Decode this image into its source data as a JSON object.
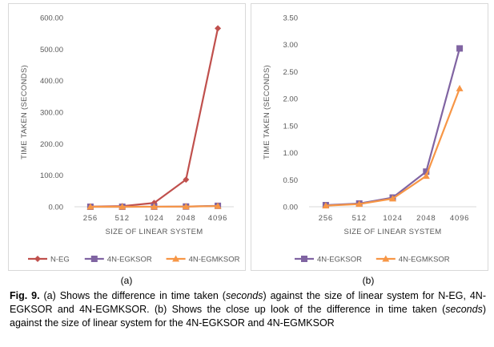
{
  "caption": {
    "fig_label": "Fig. 9.",
    "part1": " (a) Shows the difference in time taken (",
    "em1": "seconds",
    "part2": ") against the size of linear system for N-EG, 4N-EGKSOR and 4N-EGMKSOR. (b) Shows the close up look of the difference in time taken (",
    "em2": "seconds",
    "part3": ") against the size of linear system for the 4N-EGKSOR and 4N-EGMKSOR"
  },
  "sub_labels": {
    "a": "(a)",
    "b": "(b)"
  },
  "chart_data": [
    {
      "type": "line",
      "title": "",
      "xlabel": "SIZE OF LINEAR SYSTEM",
      "ylabel": "TIME TAKEN (SECONDS)",
      "categories": [
        "256",
        "512",
        "1024",
        "2048",
        "4096"
      ],
      "ylim": [
        0,
        600
      ],
      "yticks": [
        "0.00",
        "100.00",
        "200.00",
        "300.00",
        "400.00",
        "500.00",
        "600.00"
      ],
      "grid": false,
      "legend": "bottom",
      "series": [
        {
          "name": "N-EG",
          "color": "#c0504d",
          "marker": "diamond",
          "values": [
            0.5,
            2,
            12,
            86,
            566
          ]
        },
        {
          "name": "4N-EGKSOR",
          "color": "#8064a2",
          "marker": "square",
          "values": [
            0.03,
            0.06,
            0.17,
            0.65,
            2.93
          ]
        },
        {
          "name": "4N-EGMKSOR",
          "color": "#f79646",
          "marker": "triangle",
          "values": [
            0.02,
            0.05,
            0.15,
            0.57,
            2.19
          ]
        }
      ]
    },
    {
      "type": "line",
      "title": "",
      "xlabel": "SIZE OF LINEAR SYSTEM",
      "ylabel": "TIME TAKEN (SECONDS)",
      "categories": [
        "256",
        "512",
        "1024",
        "2048",
        "4096"
      ],
      "ylim": [
        0,
        3.5
      ],
      "yticks": [
        "0.00",
        "0.50",
        "1.00",
        "1.50",
        "2.00",
        "2.50",
        "3.00",
        "3.50"
      ],
      "grid": false,
      "legend": "bottom",
      "series": [
        {
          "name": "4N-EGKSOR",
          "color": "#8064a2",
          "marker": "square",
          "values": [
            0.03,
            0.06,
            0.17,
            0.65,
            2.93
          ]
        },
        {
          "name": "4N-EGMKSOR",
          "color": "#f79646",
          "marker": "triangle",
          "values": [
            0.02,
            0.05,
            0.15,
            0.57,
            2.19
          ]
        }
      ]
    }
  ]
}
